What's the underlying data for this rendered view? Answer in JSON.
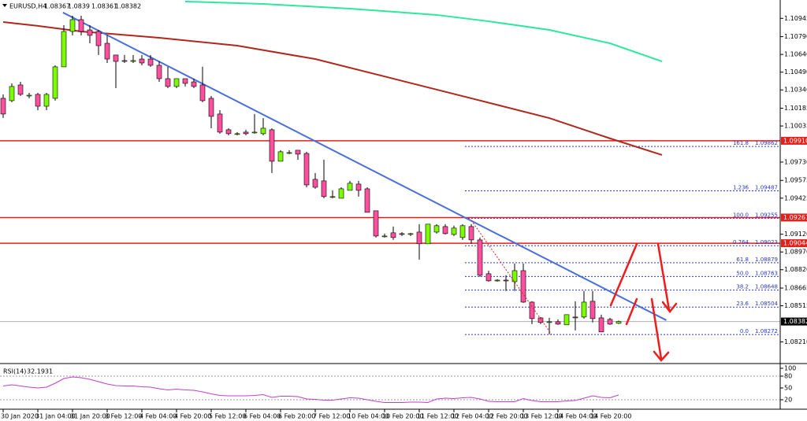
{
  "chart_data": {
    "type": "candlestick",
    "symbol": "EURUSD,H4",
    "categories": [
      "30 Jan 2020",
      null,
      null,
      null,
      "31 Jan 04:00",
      null,
      null,
      null,
      "31 Jan 20:00",
      null,
      null,
      null,
      "3 Feb 12:00",
      null,
      null,
      null,
      "4 Feb 04:00",
      null,
      null,
      null,
      "4 Feb 20:00",
      null,
      null,
      null,
      "5 Feb 12:00",
      null,
      null,
      null,
      "6 Feb 04:00",
      null,
      null,
      null,
      "6 Feb 20:00",
      null,
      null,
      null,
      "7 Feb 12:00",
      null,
      null,
      null,
      "10 Feb 04:00",
      null,
      null,
      null,
      "10 Feb 20:00",
      null,
      null,
      null,
      "11 Feb 12:00",
      null,
      null,
      null,
      "12 Feb 04:00",
      null,
      null,
      null,
      "12 Feb 20:00",
      null,
      null,
      null,
      "13 Feb 12:00",
      null,
      null,
      null,
      "14 Feb 04:00",
      null,
      null,
      null,
      "14 Feb 20:00",
      null,
      null,
      null
    ],
    "open": [
      1.10269,
      1.10249,
      1.10382,
      1.10289,
      1.10302,
      1.10202,
      1.10269,
      1.10535,
      1.10834,
      1.10934,
      1.10847,
      1.10834,
      1.10734,
      1.10635,
      1.10588,
      1.10581,
      1.10601,
      1.10601,
      1.10548,
      1.10435,
      1.10369,
      1.10435,
      1.10408,
      1.10382,
      1.10269,
      1.10136,
      1.10003,
      1.0997,
      1.09983,
      1.09983,
      1.0997,
      1.10003,
      1.09737,
      1.0981,
      1.0983,
      1.09803,
      1.09584,
      1.09571,
      1.09438,
      1.09424,
      1.09491,
      1.09544,
      1.09504,
      1.09318,
      1.09105,
      1.09132,
      1.09125,
      1.09118,
      1.09138,
      1.09039,
      1.09138,
      1.09185,
      1.09118,
      1.09092,
      1.09185,
      1.09072,
      1.08786,
      1.08726,
      1.08732,
      1.08719,
      1.08812,
      1.08546,
      1.08413,
      1.08374,
      1.0838,
      1.08354,
      1.0842,
      1.0842,
      1.08553,
      1.08413,
      1.084,
      1.08367
    ],
    "high": [
      1.10302,
      1.10395,
      1.10408,
      1.10315,
      1.10315,
      1.10315,
      1.10548,
      1.10887,
      1.10967,
      1.10967,
      1.10887,
      1.10847,
      1.10801,
      1.10635,
      1.10635,
      1.10635,
      1.10635,
      1.10635,
      1.10581,
      1.10535,
      1.10435,
      1.10435,
      1.10435,
      1.10535,
      1.10289,
      1.10169,
      1.10016,
      1.09983,
      1.10003,
      1.10136,
      1.10103,
      1.10016,
      1.0983,
      1.0983,
      1.0983,
      1.09817,
      1.09637,
      1.0975,
      1.09491,
      1.09517,
      1.09571,
      1.09571,
      1.09517,
      1.09318,
      1.09125,
      1.09185,
      1.09138,
      1.09132,
      1.09205,
      1.09205,
      1.09205,
      1.09205,
      1.09192,
      1.09205,
      1.09205,
      1.09092,
      1.08812,
      1.0874,
      1.08773,
      1.08872,
      1.08872,
      1.08553,
      1.0842,
      1.08413,
      1.084,
      1.0844,
      1.08553,
      1.0864,
      1.0864,
      1.0844,
      1.08413,
      1.0839
    ],
    "low": [
      1.10103,
      1.10236,
      1.10289,
      1.10269,
      1.10169,
      1.10169,
      1.10249,
      1.10535,
      1.10801,
      1.10801,
      1.10734,
      1.10635,
      1.10568,
      1.10355,
      1.10568,
      1.10568,
      1.10548,
      1.10535,
      1.10408,
      1.10355,
      1.10355,
      1.10369,
      1.10355,
      1.10236,
      1.10016,
      1.0997,
      1.09956,
      1.09956,
      1.09956,
      1.0997,
      1.09956,
      1.09637,
      1.09737,
      1.09797,
      1.0975,
      1.09517,
      1.09504,
      1.09424,
      1.09424,
      1.09424,
      1.09491,
      1.09438,
      1.09305,
      1.09092,
      1.09092,
      1.09072,
      1.09105,
      1.09105,
      1.08906,
      1.09039,
      1.09125,
      1.09118,
      1.09105,
      1.09072,
      1.09039,
      1.0876,
      1.08719,
      1.08719,
      1.0864,
      1.0864,
      1.0854,
      1.0836,
      1.0836,
      1.08274,
      1.08354,
      1.08354,
      1.08307,
      1.08407,
      1.08374,
      1.08294,
      1.08354,
      1.08361
    ],
    "close": [
      1.10136,
      1.10369,
      1.10302,
      1.10295,
      1.10202,
      1.10302,
      1.10535,
      1.10834,
      1.10934,
      1.10834,
      1.10801,
      1.10714,
      1.10601,
      1.10581,
      1.10581,
      1.10588,
      1.10568,
      1.10548,
      1.10435,
      1.10369,
      1.10435,
      1.10395,
      1.10369,
      1.10249,
      1.10116,
      1.09983,
      1.0997,
      1.0997,
      1.0997,
      1.09983,
      1.10016,
      1.09737,
      1.09817,
      1.0981,
      1.09797,
      1.09537,
      1.09517,
      1.09438,
      1.09438,
      1.09504,
      1.09551,
      1.09491,
      1.09305,
      1.09105,
      1.09105,
      1.09092,
      1.09118,
      1.09125,
      1.09039,
      1.09205,
      1.09192,
      1.09125,
      1.09172,
      1.09192,
      1.09072,
      1.08773,
      1.08726,
      1.08732,
      1.08726,
      1.08812,
      1.08546,
      1.08407,
      1.08374,
      1.0838,
      1.0836,
      1.0844,
      1.08413,
      1.08546,
      1.08407,
      1.08294,
      1.0836,
      1.08382
    ],
    "up_color": "#7cfc00",
    "down_color": "#ff4f9e",
    "ylim": [
      1.0804,
      1.111
    ],
    "yticks": [
      {
        "value": 1.10945,
        "label": "1.10945"
      },
      {
        "value": 1.1079,
        "label": "1.10790"
      },
      {
        "value": 1.1064,
        "label": "1.10640"
      },
      {
        "value": 1.1049,
        "label": "1.10490"
      },
      {
        "value": 1.1034,
        "label": "1.10340"
      },
      {
        "value": 1.10185,
        "label": "1.10185"
      },
      {
        "value": 1.10035,
        "label": "1.10035"
      },
      {
        "value": 1.0973,
        "label": "1.09730"
      },
      {
        "value": 1.09575,
        "label": "1.09575"
      },
      {
        "value": 1.09425,
        "label": "1.09425"
      },
      {
        "value": 1.0912,
        "label": "1.09120"
      },
      {
        "value": 1.0897,
        "label": "1.08970"
      },
      {
        "value": 1.0882,
        "label": "1.08820"
      },
      {
        "value": 1.08665,
        "label": "1.08665"
      },
      {
        "value": 1.08515,
        "label": "1.08515"
      },
      {
        "value": 1.0821,
        "label": "1.08210"
      }
    ],
    "moving_averages": [
      {
        "color": "#2ee89a",
        "x": [
          21,
          30,
          40,
          50,
          56,
          63,
          70,
          76
        ],
        "values": [
          1.11087,
          1.11067,
          1.11027,
          1.10974,
          1.1092,
          1.10847,
          1.10734,
          1.10581
        ]
      },
      {
        "color": "#b0281c",
        "x": [
          0,
          4,
          9,
          18,
          27,
          36,
          45,
          54,
          63,
          70,
          76
        ],
        "values": [
          1.10914,
          1.10881,
          1.10834,
          1.10781,
          1.10714,
          1.10601,
          1.10435,
          1.10269,
          1.10102,
          1.0993,
          1.0979
        ]
      }
    ],
    "trendline": {
      "color": "#4a6fdc",
      "x": [
        6.9,
        76.5
      ],
      "values": [
        1.10994,
        1.08393
      ]
    },
    "level_color": "#e4201c",
    "levels": [
      {
        "value": 1.0991,
        "label": "1.09910"
      },
      {
        "value": 1.09261,
        "label": "1.09261"
      },
      {
        "value": 1.09044,
        "label": "1.09044"
      }
    ],
    "fibonacci": {
      "color": "#2a38c8",
      "levels": [
        {
          "level": "161.8",
          "price": 1.09862
        },
        {
          "level": "1.236",
          "price": 1.09487
        },
        {
          "level": "100.0",
          "price": 1.09255
        },
        {
          "level": "0.764",
          "price": 1.09023
        },
        {
          "level": "61.8",
          "price": 1.08879
        },
        {
          "level": "50.0",
          "price": 1.08763
        },
        {
          "level": "38.2",
          "price": 1.08648
        },
        {
          "level": "23.6",
          "price": 1.08504
        },
        {
          "level": "0.0",
          "price": 1.08272
        }
      ]
    },
    "rsi": {
      "label": "RSI(14)",
      "color": "#c040c8",
      "ylim": [
        0,
        100
      ],
      "yticks": [
        100,
        80,
        50,
        20
      ],
      "levels": [
        80,
        20
      ],
      "values": [
        55,
        58,
        55,
        52,
        50,
        52,
        62,
        74,
        78,
        76,
        72,
        66,
        60,
        56,
        55,
        55,
        53,
        52,
        48,
        45,
        47,
        45,
        44,
        40,
        35,
        31,
        30,
        30,
        30,
        31,
        33,
        26,
        29,
        29,
        28,
        22,
        21,
        19,
        19,
        22,
        25,
        24,
        20,
        16,
        13,
        13,
        13,
        14,
        14,
        13,
        22,
        24,
        23,
        25,
        26,
        22,
        16,
        15,
        15,
        15,
        23,
        18,
        15,
        15,
        15,
        17,
        18,
        24,
        30,
        26,
        25,
        32.1931
      ]
    }
  }
}
